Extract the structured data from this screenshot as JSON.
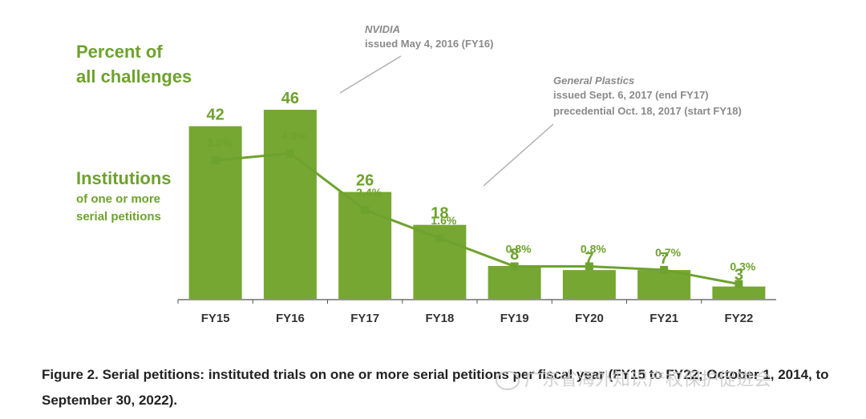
{
  "chart_data": {
    "type": "bar",
    "categories": [
      "FY15",
      "FY16",
      "FY17",
      "FY18",
      "FY19",
      "FY20",
      "FY21",
      "FY22"
    ],
    "series": [
      {
        "name": "Institutions of one or more serial petitions",
        "type": "bar",
        "values": [
          42,
          46,
          26,
          18,
          8,
          7,
          7,
          3
        ],
        "value_labels": [
          "42",
          "46",
          "26",
          "18",
          "8",
          "7",
          "7",
          "3"
        ]
      },
      {
        "name": "Percent of all challenges",
        "type": "line",
        "values": [
          3.8,
          4.0,
          2.4,
          1.6,
          0.8,
          0.8,
          0.7,
          0.3
        ],
        "value_labels": [
          "3.8%",
          "4.0%",
          "2.4%",
          "1.6%",
          "0.8%",
          "0.8%",
          "0.7%",
          "0.3%"
        ]
      }
    ],
    "legend": {
      "line_title_1": "Percent of",
      "line_title_2": "all challenges",
      "bar_title": "Institutions",
      "bar_sub_1": "of one or more",
      "bar_sub_2": "serial petitions"
    },
    "annotations": [
      {
        "name": "nvidia",
        "title": "NVIDIA",
        "lines": [
          "issued May 4, 2016 (FY16)"
        ]
      },
      {
        "name": "general-plastics",
        "title": "General Plastics",
        "lines": [
          "issued Sept. 6, 2017 (end FY17)",
          "precedential Oct. 18, 2017 (start FY18)"
        ]
      }
    ],
    "bar_ylim": [
      0,
      50
    ],
    "line_ylim": [
      0,
      4.4
    ],
    "colors": {
      "bar": "#76A732",
      "line": "#6EA22E",
      "text": "#6EA22E",
      "annotation": "#8a8a8a",
      "axis": "#555555"
    }
  },
  "caption": "Figure 2. Serial petitions: instituted trials on one or more serial petitions per fiscal year (FY15 to FY22; October 1, 2014, to September 30, 2022).",
  "watermark": "广东省海外知识产权保护促进会"
}
